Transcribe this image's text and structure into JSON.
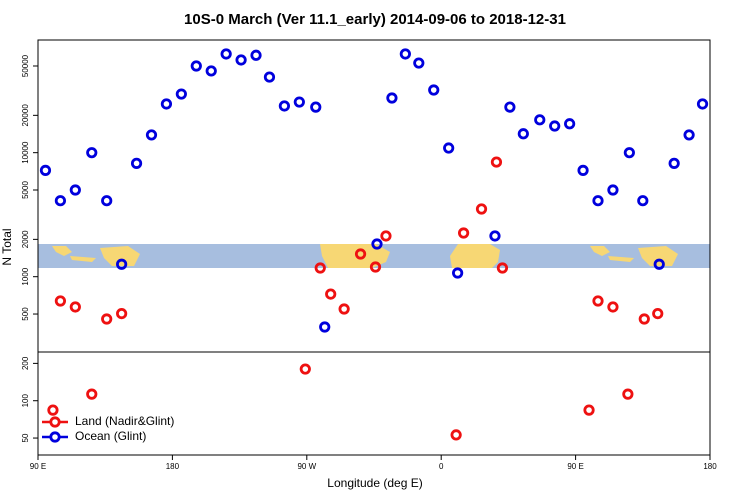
{
  "chart_data": {
    "type": "scatter",
    "title": "10S-0 March (Ver 11.1_early)   2014-09-06 to 2018-12-31",
    "x_label": "Longitude (deg E)",
    "y_label": "N Total",
    "log_y": true,
    "legend": "lower left",
    "xlim": [
      90,
      540
    ],
    "xticks": [
      {
        "value": 90,
        "label": "90 E"
      },
      180,
      {
        "value": 270,
        "label": "90 W"
      },
      {
        "value": 360,
        "label": "0"
      },
      {
        "value": 450,
        "label": "90 E"
      },
      {
        "value": 540,
        "label": "180"
      }
    ],
    "ylim": [
      36.5,
      81000
    ],
    "yticks": [
      50,
      100,
      200,
      500,
      1000,
      2000,
      5000,
      10000,
      20000,
      50000
    ],
    "series": [
      {
        "name": "Land (Nadir&Glint)",
        "color": "#ee1111",
        "x": [
          100,
          105,
          115,
          126,
          136,
          146,
          269,
          279,
          286,
          295,
          306,
          316,
          323,
          370,
          375,
          387,
          397,
          401,
          459,
          465,
          475,
          485,
          496,
          505
        ],
        "values": [
          84,
          637,
          570,
          113,
          456,
          504,
          180,
          1175,
          724,
          549,
          1524,
          1197,
          2130,
          53,
          2250,
          3515,
          8400,
          1175,
          84,
          637,
          570,
          113,
          456,
          504
        ]
      },
      {
        "name": "Ocean (Glint)",
        "color": "#0000dd",
        "x": [
          95,
          105,
          115,
          126,
          136,
          146,
          156,
          166,
          176,
          186,
          196,
          206,
          216,
          226,
          236,
          245,
          255,
          265,
          276,
          282,
          317,
          327,
          336,
          345,
          355,
          365,
          371,
          396,
          406,
          415,
          426,
          436,
          446,
          455,
          465,
          475,
          486,
          495,
          506,
          516,
          526,
          535
        ],
        "values": [
          7200,
          4100,
          5000,
          10000,
          4100,
          1260,
          8200,
          13900,
          24700,
          29700,
          50000,
          45600,
          62500,
          55900,
          61000,
          40700,
          23800,
          25600,
          23300,
          393,
          1835,
          27600,
          62500,
          52800,
          32000,
          10900,
          1071,
          2130,
          23300,
          14200,
          18400,
          16400,
          17100,
          7200,
          4100,
          5000,
          10000,
          4100,
          1260,
          8200,
          13900,
          24700
        ]
      }
    ]
  }
}
